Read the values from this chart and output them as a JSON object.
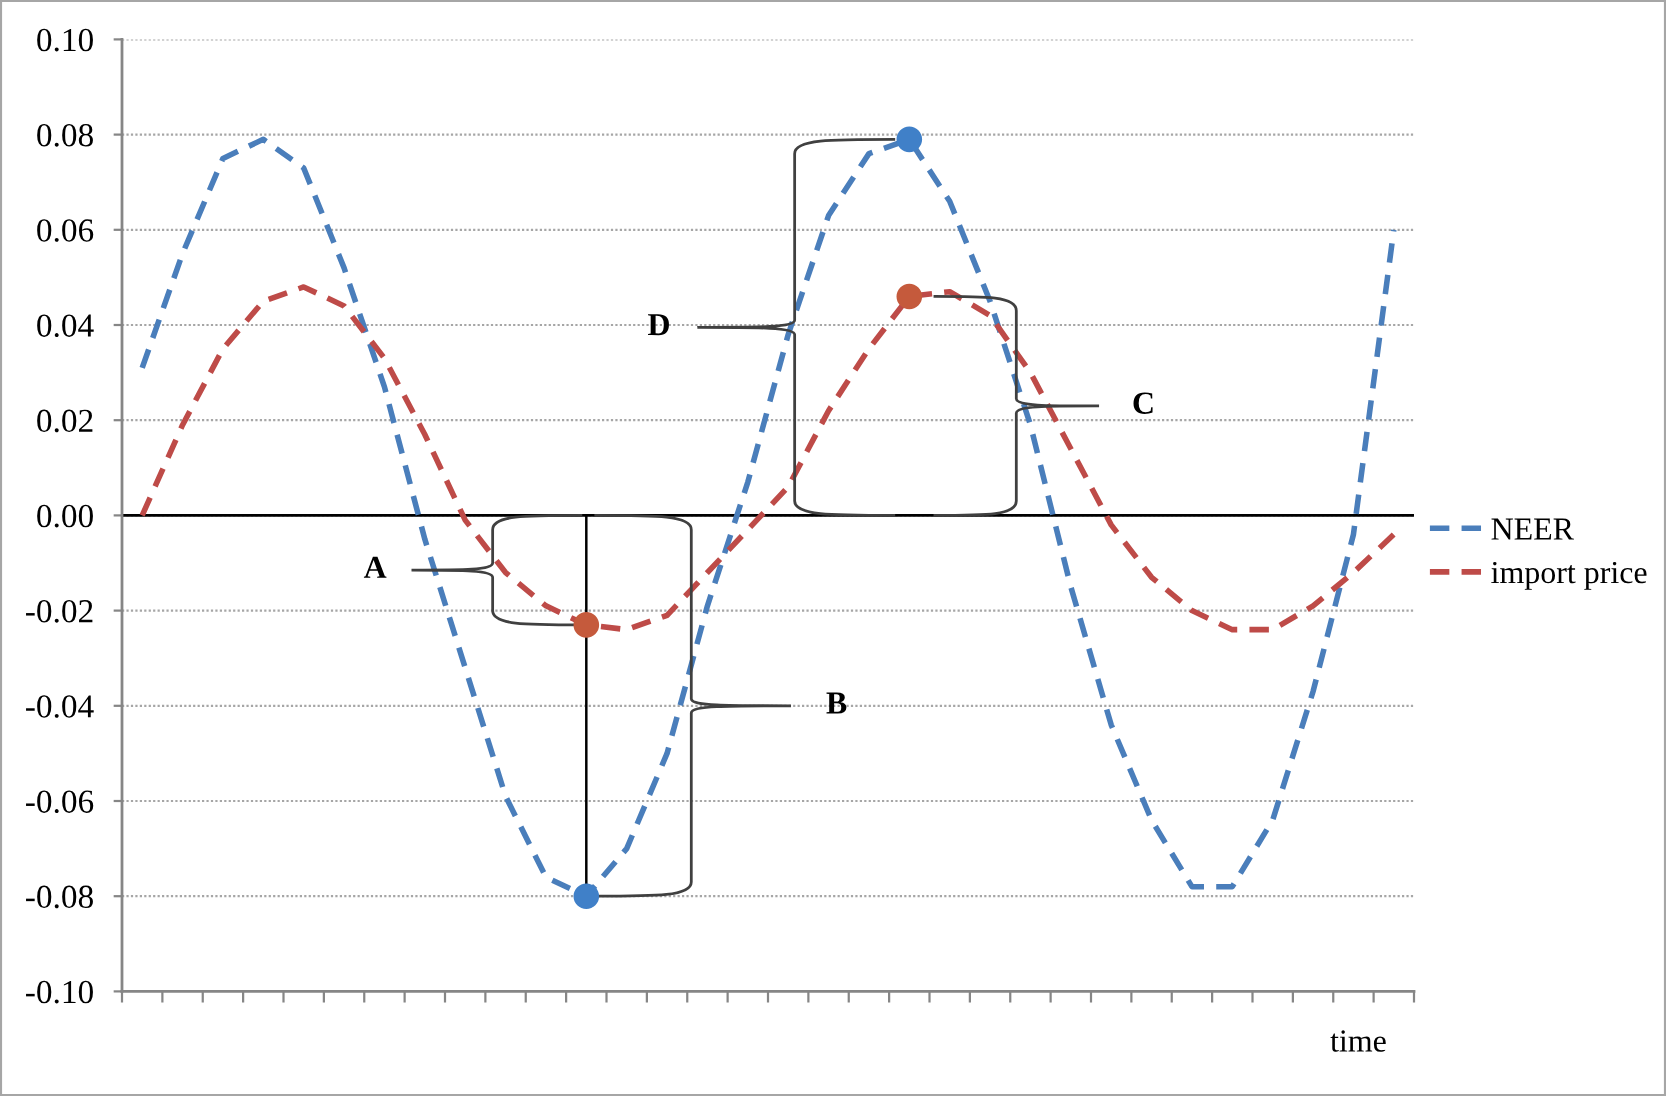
{
  "chart_data": {
    "type": "line",
    "xlabel": "time",
    "categories": [
      null,
      null,
      null,
      null,
      null,
      null,
      null,
      null,
      null,
      null,
      null,
      null,
      null,
      null,
      null,
      null,
      null,
      null,
      null,
      null,
      null,
      null,
      null,
      null,
      null,
      null,
      null,
      null,
      null,
      null,
      null,
      null
    ],
    "series": [
      {
        "name": "NEER",
        "color": "#4a7ebb",
        "values": [
          0.031,
          0.055,
          0.075,
          0.079,
          0.073,
          0.052,
          0.027,
          -0.005,
          -0.032,
          -0.059,
          -0.076,
          -0.08,
          -0.07,
          -0.05,
          -0.019,
          0.007,
          0.038,
          0.063,
          0.076,
          0.079,
          0.066,
          0.045,
          0.019,
          -0.015,
          -0.044,
          -0.064,
          -0.078,
          -0.078,
          -0.064,
          -0.037,
          -0.004,
          0.06
        ]
      },
      {
        "name": "import price",
        "color": "#be4b48",
        "values": [
          0.0,
          0.019,
          0.035,
          0.045,
          0.048,
          0.044,
          0.033,
          0.017,
          -0.001,
          -0.012,
          -0.019,
          -0.023,
          -0.024,
          -0.021,
          -0.012,
          -0.003,
          0.006,
          0.022,
          0.035,
          0.046,
          0.047,
          0.042,
          0.03,
          0.014,
          -0.002,
          -0.013,
          -0.02,
          -0.024,
          -0.024,
          -0.019,
          -0.012,
          -0.004
        ]
      },
      {
        "type": "scatter",
        "marker": "circle",
        "color": "#4080c8",
        "values": [
          null,
          null,
          null,
          null,
          null,
          null,
          null,
          null,
          null,
          null,
          null,
          -0.08,
          null,
          null,
          null,
          null,
          null,
          null,
          null,
          0.079,
          null,
          null,
          null,
          null,
          null,
          null,
          null,
          null,
          null,
          null,
          null,
          null
        ]
      },
      {
        "type": "scatter",
        "marker": "circle",
        "color": "#c55a3c",
        "values": [
          null,
          null,
          null,
          null,
          null,
          null,
          null,
          null,
          null,
          null,
          null,
          -0.023,
          null,
          null,
          null,
          null,
          null,
          null,
          null,
          0.046,
          null,
          null,
          null,
          null,
          null,
          null,
          null,
          null,
          null,
          null,
          null,
          null
        ]
      }
    ],
    "ylim": [
      -0.1,
      0.1
    ],
    "yticks": [
      {
        "value": -0.1,
        "label": "-0.10"
      },
      {
        "value": -0.08,
        "label": "-0.08"
      },
      {
        "value": -0.06,
        "label": "-0.06"
      },
      {
        "value": -0.04,
        "label": "-0.04"
      },
      {
        "value": -0.02,
        "label": "-0.02"
      },
      {
        "value": 0,
        "label": "0.00"
      },
      {
        "value": 0.02,
        "label": "0.02"
      },
      {
        "value": 0.04,
        "label": "0.04"
      },
      {
        "value": 0.06,
        "label": "0.06"
      },
      {
        "value": 0.08,
        "label": "0.08"
      },
      {
        "value": 0.1,
        "label": "0.10"
      }
    ],
    "grid": "y",
    "legend": "right",
    "tick_labels": "y",
    "line_style": "dashed",
    "ref_lines": [
      {
        "axis": "y",
        "value": 0,
        "color": "#000000"
      }
    ],
    "annotations": [
      "A",
      "B",
      "C",
      "D"
    ]
  }
}
